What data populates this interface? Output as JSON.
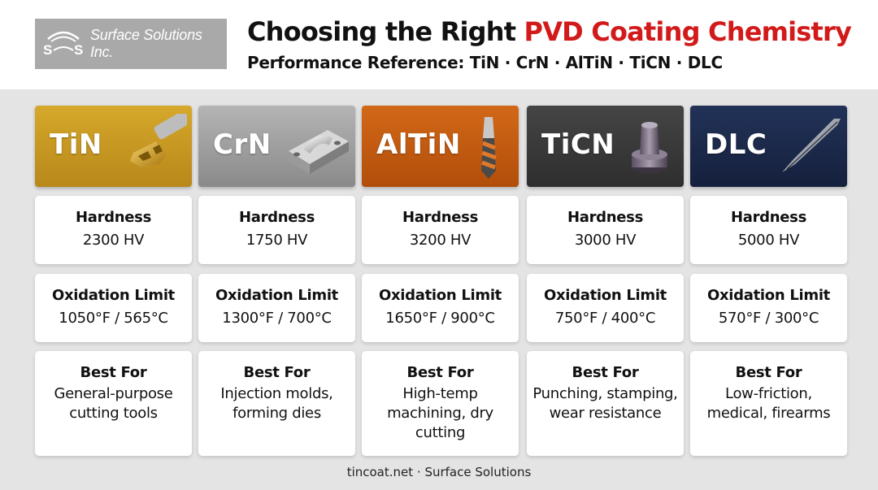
{
  "header": {
    "logo_text": "Surface Solutions Inc.",
    "title_main": "Choosing the Right ",
    "title_accent": "PVD Coating Chemistry",
    "subtitle": "Performance Reference: TiN · CrN · AlTiN · TiCN · DLC"
  },
  "labels": {
    "hardness": "Hardness",
    "oxidation": "Oxidation Limit",
    "best_for": "Best For"
  },
  "coatings": [
    {
      "name": "TiN",
      "hardness": "2300 HV",
      "oxidation": "1050°F / 565°C",
      "best_for": "General-purpose cutting tools",
      "color": "#c89a1e",
      "icon": "endmill-insert-icon"
    },
    {
      "name": "CrN",
      "hardness": "1750 HV",
      "oxidation": "1300°F / 700°C",
      "best_for": "Injection molds, forming dies",
      "color": "#9c9c9c",
      "icon": "mold-block-icon"
    },
    {
      "name": "AlTiN",
      "hardness": "3200 HV",
      "oxidation": "1650°F / 900°C",
      "best_for": "High-temp machining, dry cutting",
      "color": "#c65a10",
      "icon": "drill-bit-icon"
    },
    {
      "name": "TiCN",
      "hardness": "3000 HV",
      "oxidation": "750°F / 400°C",
      "best_for": "Punching, stamping, wear resistance",
      "color": "#3a3a3a",
      "icon": "punch-icon"
    },
    {
      "name": "DLC",
      "hardness": "5000 HV",
      "oxidation": "570°F / 300°C",
      "best_for": "Low-friction, medical, firearms",
      "color": "#1c2a4a",
      "icon": "needle-icon"
    }
  ],
  "footer": "tincoat.net · Surface Solutions"
}
